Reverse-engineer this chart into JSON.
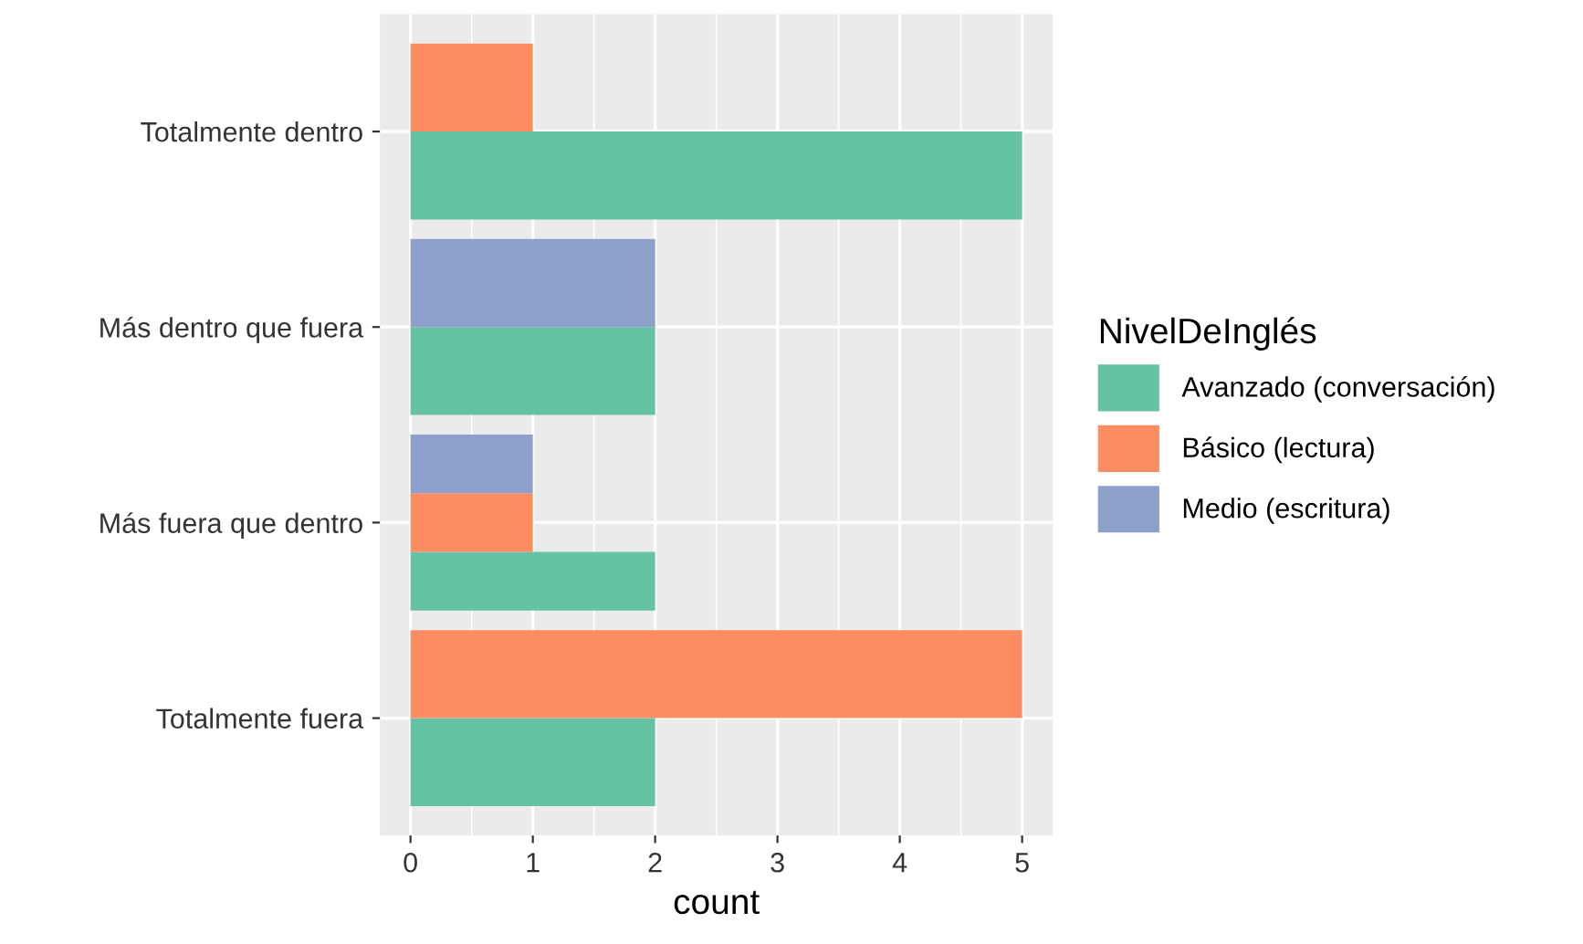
{
  "chart_data": {
    "type": "bar",
    "orientation": "horizontal",
    "xlabel": "count",
    "legend_title": "NivelDeInglés",
    "categories": [
      "Totalmente dentro",
      "Más dentro que fuera",
      "Más fuera que dentro",
      "Totalmente fuera"
    ],
    "series": [
      {
        "name": "Avanzado (conversación)",
        "color": "#66c2a5",
        "values": [
          5,
          2,
          2,
          2
        ]
      },
      {
        "name": "Básico (lectura)",
        "color": "#fc8d62",
        "values": [
          1,
          null,
          1,
          5
        ]
      },
      {
        "name": "Medio (escritura)",
        "color": "#8da0cb",
        "values": [
          null,
          2,
          1,
          null
        ]
      }
    ],
    "xlim": [
      -0.25,
      5.25
    ],
    "xticks": [
      0,
      1,
      2,
      3,
      4,
      5
    ],
    "grid": true,
    "legend": "right"
  }
}
